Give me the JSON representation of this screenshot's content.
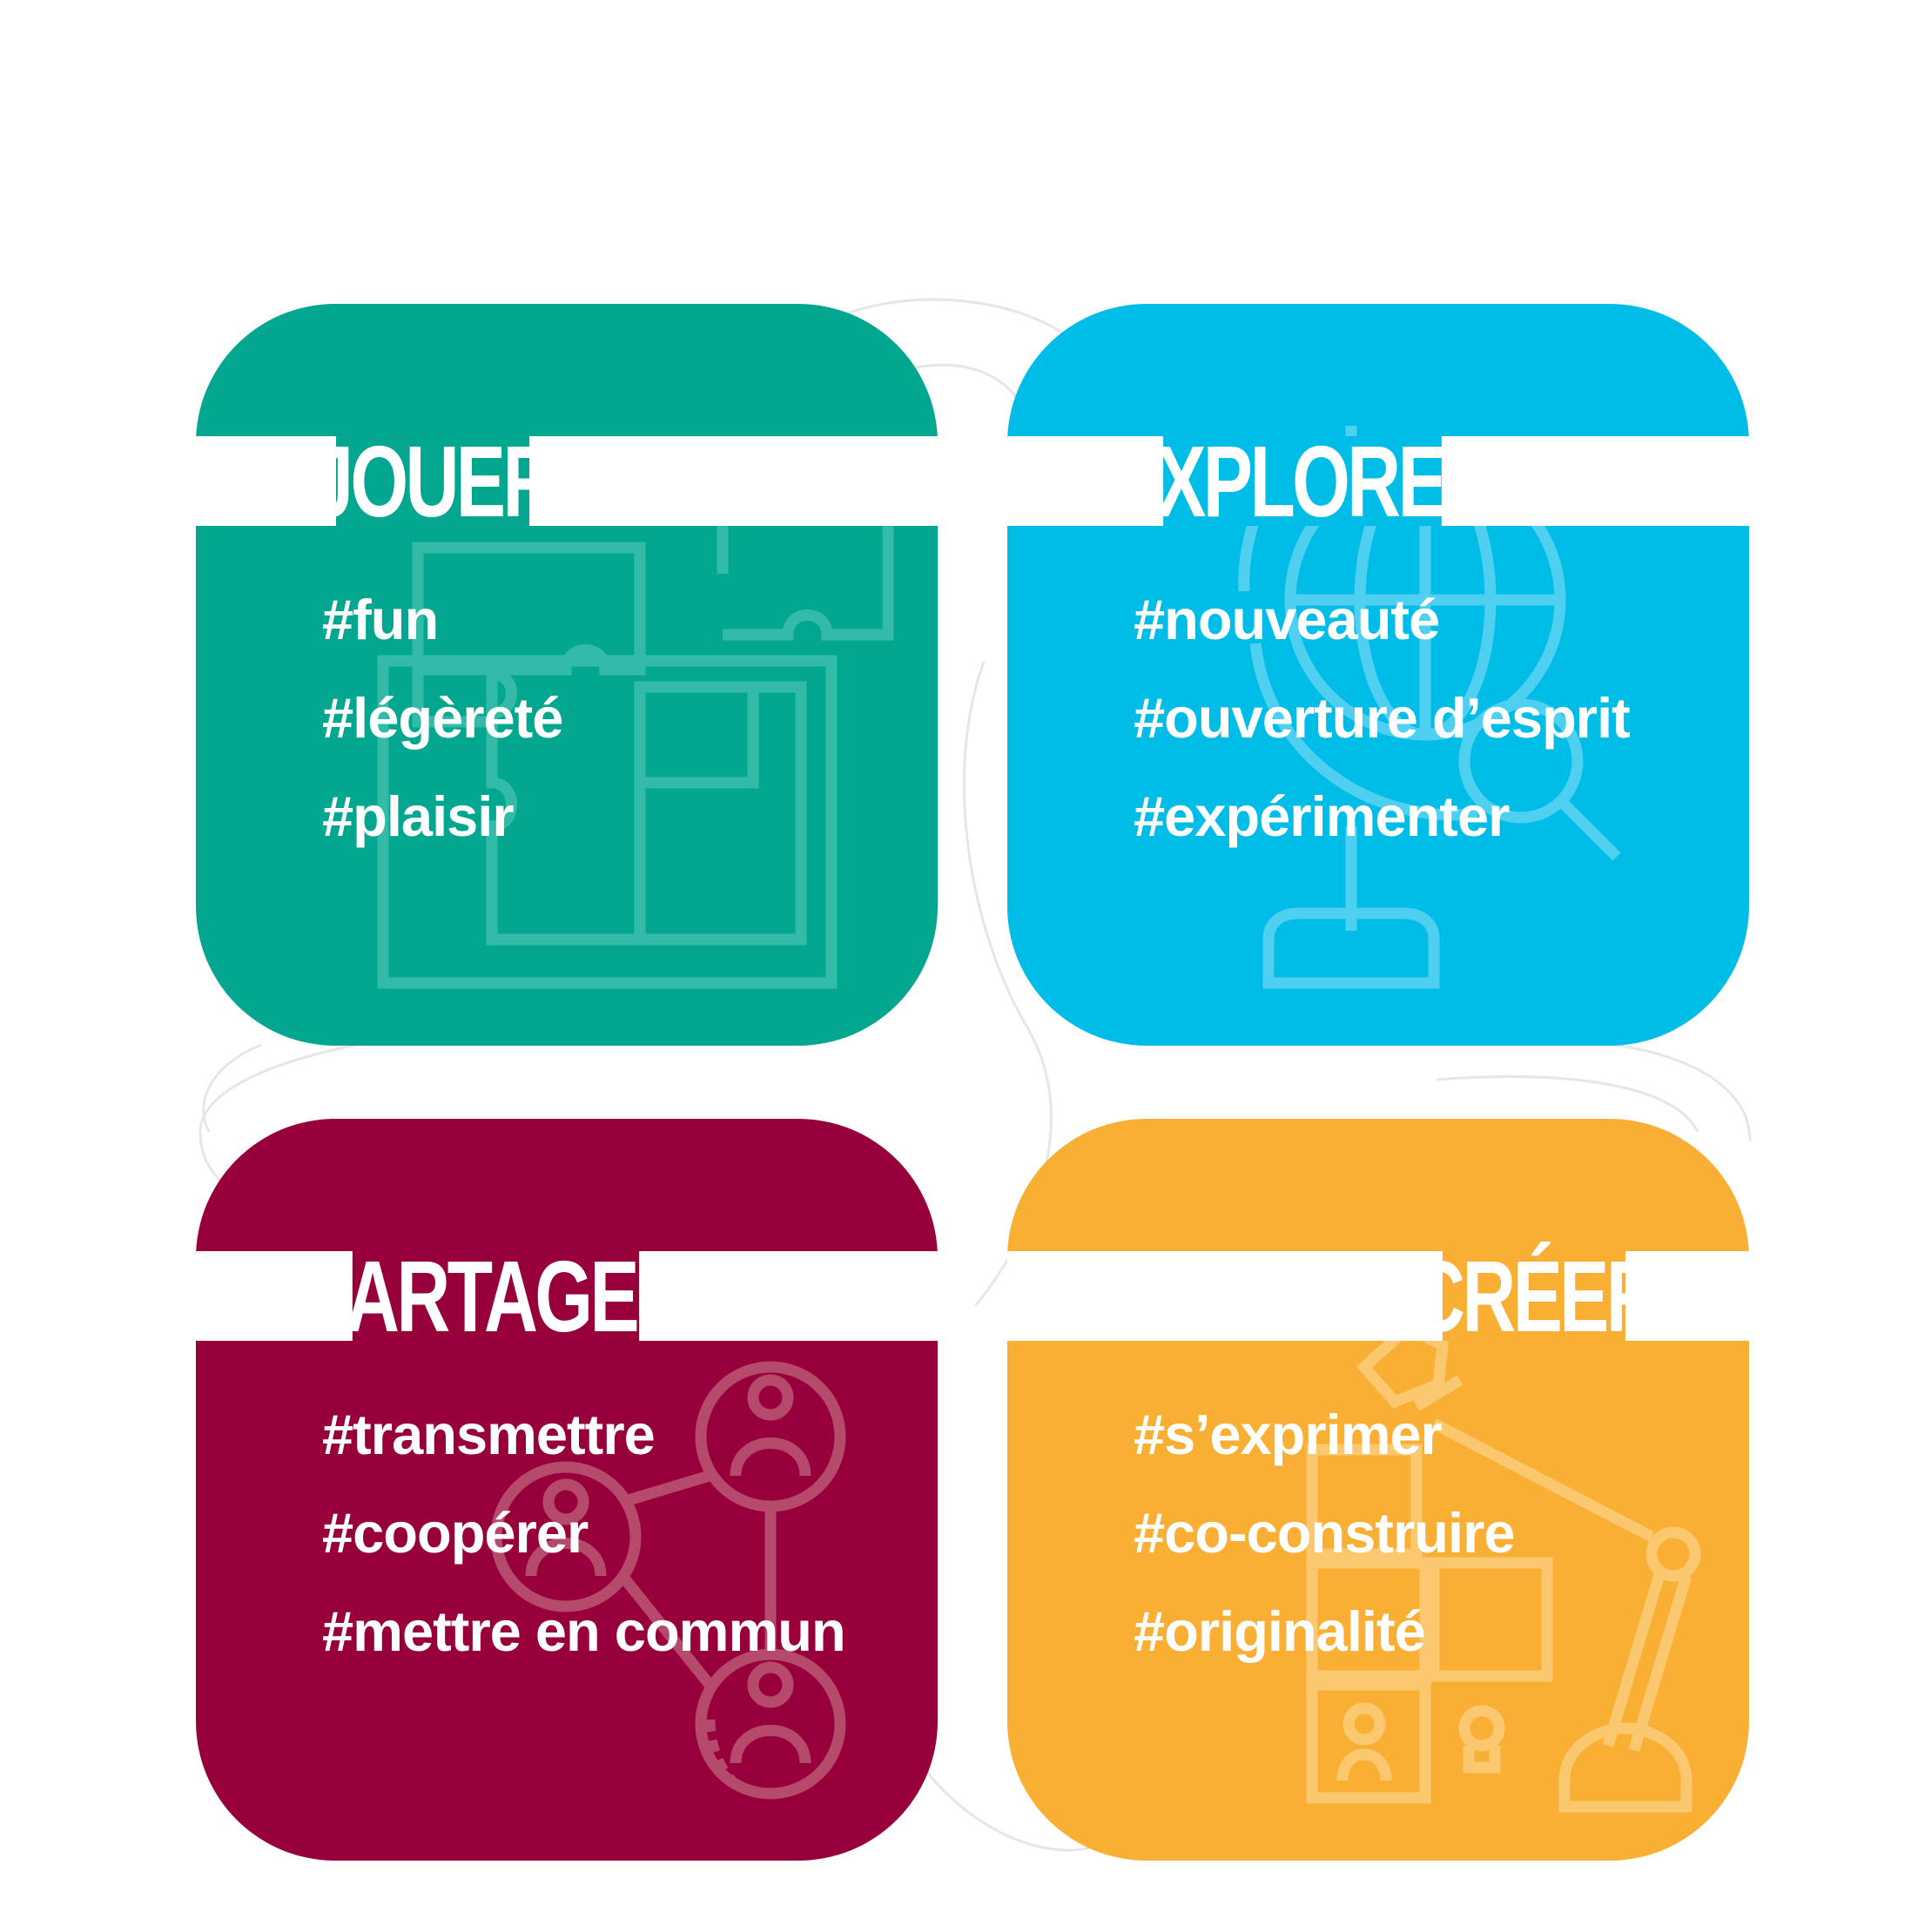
{
  "cards": [
    {
      "title": "JOUER",
      "color": "#03a68f",
      "icon": "puzzle-icon",
      "tags": [
        "#fun",
        "#légèreté",
        "#plaisir"
      ]
    },
    {
      "title": "EXPLORER",
      "color": "#00bde8",
      "icon": "globe-magnifier-icon",
      "tags": [
        "#nouveauté",
        "#ouverture d’esprit",
        "#expérimenter"
      ]
    },
    {
      "title": "PARTAGER",
      "color": "#98003b",
      "icon": "people-network-icon",
      "tags": [
        "#transmettre",
        "#coopérer",
        "#mettre en commun"
      ]
    },
    {
      "title": "CRÉER",
      "color": "#f8af33",
      "icon": "robot-arm-blocks-icon",
      "tags": [
        "#s’exprimer",
        "#co-construire",
        "#originalité"
      ]
    }
  ]
}
